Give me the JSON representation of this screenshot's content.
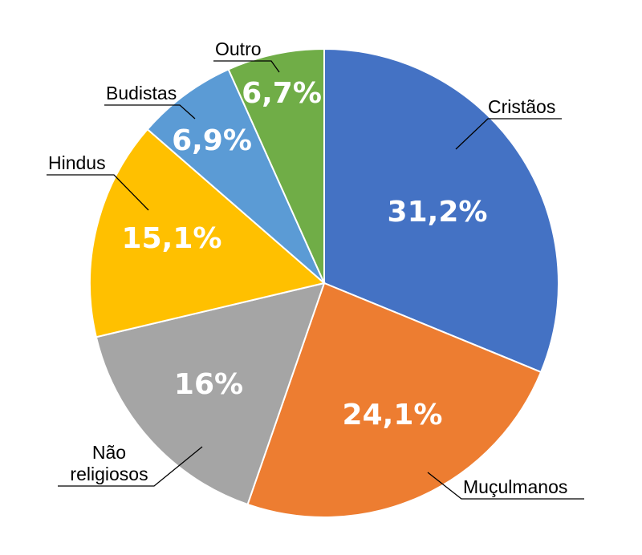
{
  "chart_data": {
    "type": "pie",
    "slices": [
      {
        "label": "Cristãos",
        "value": 31.2,
        "value_label": "31,2%",
        "color": "#4472C4"
      },
      {
        "label": "Muçulmanos",
        "value": 24.1,
        "value_label": "24,1%",
        "color": "#ED7D31"
      },
      {
        "label": "Não religiosos",
        "label_lines": [
          "Não",
          "religiosos"
        ],
        "value": 16,
        "value_label": "16%",
        "color": "#A5A5A5"
      },
      {
        "label": "Hindus",
        "value": 15.1,
        "value_label": "15,1%",
        "color": "#FFC000"
      },
      {
        "label": "Budistas",
        "value": 6.9,
        "value_label": "6,9%",
        "color": "#5B9BD5"
      },
      {
        "label": "Outro",
        "value": 6.7,
        "value_label": "6,7%",
        "color": "#70AD47"
      }
    ]
  }
}
